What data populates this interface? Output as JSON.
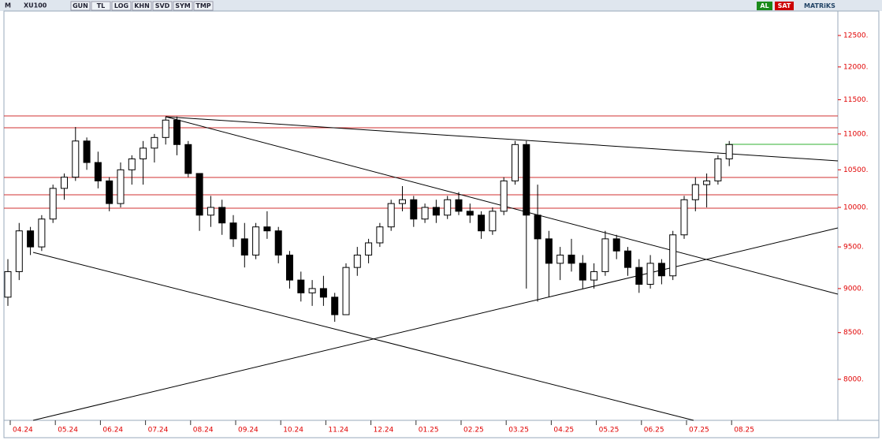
{
  "toolbar": {
    "logo": "M",
    "symbol": "XU100",
    "buttons": [
      "GUN",
      "TL",
      "LOG",
      "KHN",
      "SVD",
      "SYM",
      "TMP"
    ],
    "buy": "AL",
    "sell": "SAT",
    "brand": "MATRiKS"
  },
  "chart_data": {
    "type": "candlestick",
    "log_scale": true,
    "color_up": "#ffffff",
    "color_down": "#000000",
    "tick_color": "#e00000",
    "categories": [
      "04.24",
      null,
      null,
      null,
      "05.24",
      null,
      null,
      null,
      "06.24",
      null,
      null,
      null,
      "07.24",
      null,
      null,
      null,
      "08.24",
      null,
      null,
      null,
      "09.24",
      null,
      null,
      null,
      "10.24",
      null,
      null,
      null,
      "11.24",
      null,
      null,
      null,
      "12.24",
      null,
      null,
      null,
      "01.25",
      null,
      null,
      null,
      "02.25",
      null,
      null,
      null,
      "03.25",
      null,
      null,
      null,
      "04.25",
      null,
      null,
      null,
      "05.25",
      null,
      null,
      null,
      "06.25",
      null,
      null,
      null,
      "07.25",
      null,
      null,
      null,
      "08.25"
    ],
    "open": [
      8900,
      9200,
      9700,
      9500,
      9850,
      10250,
      10400,
      10900,
      10600,
      10350,
      10050,
      10500,
      10650,
      10800,
      10950,
      11200,
      10850,
      10450,
      9900,
      10000,
      9800,
      9600,
      9400,
      9750,
      9700,
      9400,
      9100,
      8950,
      9000,
      8900,
      8700,
      9250,
      9400,
      9550,
      9750,
      10050,
      10100,
      9850,
      10000,
      9900,
      10100,
      9950,
      9900,
      9700,
      9950,
      10350,
      10850,
      9900,
      9600,
      9300,
      9400,
      9300,
      9100,
      9200,
      9600,
      9450,
      9250,
      9050,
      9300,
      9150,
      9650,
      10100,
      10300,
      10350,
      10650
    ],
    "high": [
      9350,
      9800,
      9750,
      9900,
      10300,
      10450,
      11100,
      10950,
      10750,
      10400,
      10600,
      10700,
      10900,
      11000,
      11250,
      11250,
      10900,
      10450,
      10150,
      10100,
      9900,
      9800,
      9800,
      9950,
      9750,
      9450,
      9200,
      9100,
      9150,
      8950,
      9300,
      9500,
      9600,
      9800,
      10100,
      10280,
      10150,
      10050,
      10100,
      10150,
      10200,
      10050,
      9950,
      10000,
      10400,
      10900,
      10900,
      10300,
      9700,
      9500,
      9600,
      9400,
      9300,
      9700,
      9650,
      9500,
      9350,
      9400,
      9350,
      9700,
      10150,
      10400,
      10450,
      10700,
      10900
    ],
    "low": [
      8800,
      9100,
      9400,
      9450,
      9800,
      10100,
      10350,
      10500,
      10250,
      9950,
      10000,
      10300,
      10300,
      10600,
      10850,
      10700,
      10400,
      9700,
      9750,
      9650,
      9500,
      9250,
      9350,
      9600,
      9300,
      9000,
      8850,
      8800,
      8800,
      8620,
      8700,
      9150,
      9300,
      9500,
      9700,
      9950,
      9750,
      9800,
      9800,
      9850,
      9900,
      9800,
      9600,
      9650,
      9900,
      10300,
      9000,
      8850,
      8900,
      9100,
      9200,
      9000,
      9000,
      9150,
      9350,
      9150,
      8950,
      9000,
      9050,
      9100,
      9600,
      9950,
      10000,
      10300,
      10550
    ],
    "close": [
      9200,
      9700,
      9500,
      9850,
      10250,
      10400,
      10900,
      10600,
      10350,
      10050,
      10500,
      10650,
      10800,
      10950,
      11200,
      10850,
      10450,
      9900,
      10000,
      9800,
      9600,
      9400,
      9750,
      9700,
      9400,
      9100,
      8950,
      9000,
      8900,
      8700,
      9250,
      9400,
      9550,
      9750,
      10050,
      10100,
      9850,
      10000,
      9900,
      10100,
      9950,
      9900,
      9700,
      9950,
      10350,
      10850,
      9900,
      9600,
      9300,
      9400,
      9300,
      9100,
      9200,
      9600,
      9450,
      9250,
      9050,
      9300,
      9150,
      9650,
      10100,
      10300,
      10350,
      10650,
      10850
    ],
    "ylim": [
      7585,
      12903
    ],
    "yticks": [
      {
        "value": 8000,
        "label": "8000."
      },
      {
        "value": 8500,
        "label": "8500."
      },
      {
        "value": 9000,
        "label": "9000."
      },
      {
        "value": 9500,
        "label": "9500."
      },
      {
        "value": 10000,
        "label": "10000."
      },
      {
        "value": 10500,
        "label": "10500."
      },
      {
        "value": 11000,
        "label": "11000."
      },
      {
        "value": 11500,
        "label": "11500."
      },
      {
        "value": 12000,
        "label": "12000."
      },
      {
        "value": 12500,
        "label": "12500."
      }
    ]
  }
}
